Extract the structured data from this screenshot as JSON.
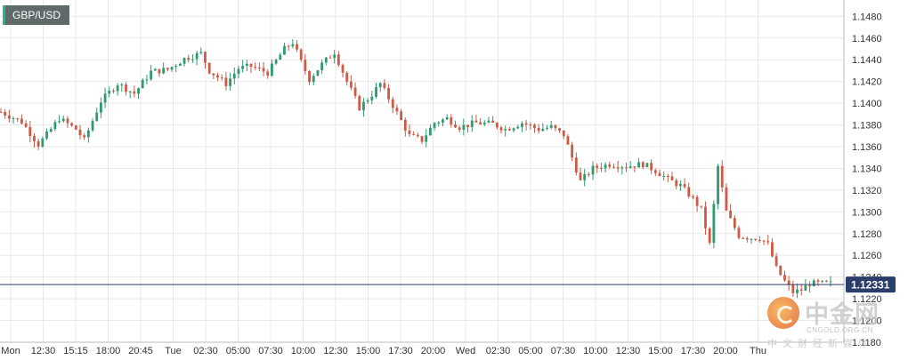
{
  "pair_label": "GBP/USD",
  "watermark": {
    "title": "中金网",
    "url": "CNGOLD.ORG.CN",
    "subtitle": "中文财经新媒体"
  },
  "colors": {
    "up": "#2e9b6e",
    "down": "#cc5a44",
    "grid": "#e8e8e8",
    "axis": "#bbbbbb",
    "current_line": "#2b3d6b",
    "current_tag_bg": "#2b3d6b"
  },
  "chart_data": {
    "type": "candlestick",
    "symbol": "GBP/USD",
    "current_price": "1.12331",
    "current_value": 1.12331,
    "ylim": [
      1.118,
      1.1495
    ],
    "y_ticks": [
      "1.1480",
      "1.1460",
      "1.1440",
      "1.1420",
      "1.1400",
      "1.1380",
      "1.1360",
      "1.1340",
      "1.1320",
      "1.1300",
      "1.1280",
      "1.1260",
      "1.1240",
      "1.1220",
      "1.1200",
      "1.1180"
    ],
    "x_ticks": [
      "Mon",
      "12:30",
      "15:15",
      "18:00",
      "20:45",
      "Tue",
      "02:30",
      "05:00",
      "07:30",
      "10:00",
      "12:30",
      "15:00",
      "17:30",
      "20:00",
      "Wed",
      "02:30",
      "05:00",
      "07:30",
      "10:00",
      "12:30",
      "15:00",
      "17:30",
      "20:00",
      "Thu"
    ],
    "candle_count": 200,
    "close_path": [
      [
        0,
        1.1392
      ],
      [
        5,
        1.1383
      ],
      [
        9,
        1.1362
      ],
      [
        11,
        1.1371
      ],
      [
        14,
        1.1386
      ],
      [
        18,
        1.1376
      ],
      [
        20,
        1.1366
      ],
      [
        24,
        1.1402
      ],
      [
        28,
        1.1418
      ],
      [
        32,
        1.1409
      ],
      [
        36,
        1.1429
      ],
      [
        40,
        1.1431
      ],
      [
        44,
        1.1441
      ],
      [
        48,
        1.1446
      ],
      [
        50,
        1.143
      ],
      [
        54,
        1.1418
      ],
      [
        57,
        1.1432
      ],
      [
        60,
        1.1434
      ],
      [
        64,
        1.1428
      ],
      [
        68,
        1.145
      ],
      [
        70,
        1.1456
      ],
      [
        72,
        1.1438
      ],
      [
        74,
        1.1422
      ],
      [
        77,
        1.1436
      ],
      [
        80,
        1.1447
      ],
      [
        83,
        1.142
      ],
      [
        86,
        1.1396
      ],
      [
        89,
        1.1408
      ],
      [
        91,
        1.1418
      ],
      [
        94,
        1.1398
      ],
      [
        98,
        1.137
      ],
      [
        101,
        1.1366
      ],
      [
        104,
        1.1382
      ],
      [
        107,
        1.1386
      ],
      [
        110,
        1.1378
      ],
      [
        114,
        1.1382
      ],
      [
        118,
        1.1381
      ],
      [
        121,
        1.1376
      ],
      [
        125,
        1.1382
      ],
      [
        129,
        1.1376
      ],
      [
        132,
        1.1378
      ],
      [
        135,
        1.1371
      ],
      [
        137,
        1.135
      ],
      [
        139,
        1.1328
      ],
      [
        142,
        1.134
      ],
      [
        146,
        1.1344
      ],
      [
        150,
        1.1342
      ],
      [
        154,
        1.1344
      ],
      [
        157,
        1.1338
      ],
      [
        160,
        1.133
      ],
      [
        163,
        1.1324
      ],
      [
        166,
        1.1312
      ],
      [
        168,
        1.1302
      ],
      [
        170,
        1.127
      ],
      [
        172,
        1.1342
      ],
      [
        174,
        1.13
      ],
      [
        177,
        1.1278
      ],
      [
        180,
        1.1276
      ],
      [
        182,
        1.1276
      ],
      [
        184,
        1.127
      ],
      [
        186,
        1.1248
      ],
      [
        188,
        1.1236
      ],
      [
        190,
        1.1226
      ],
      [
        192,
        1.1228
      ],
      [
        194,
        1.1234
      ]
    ]
  }
}
